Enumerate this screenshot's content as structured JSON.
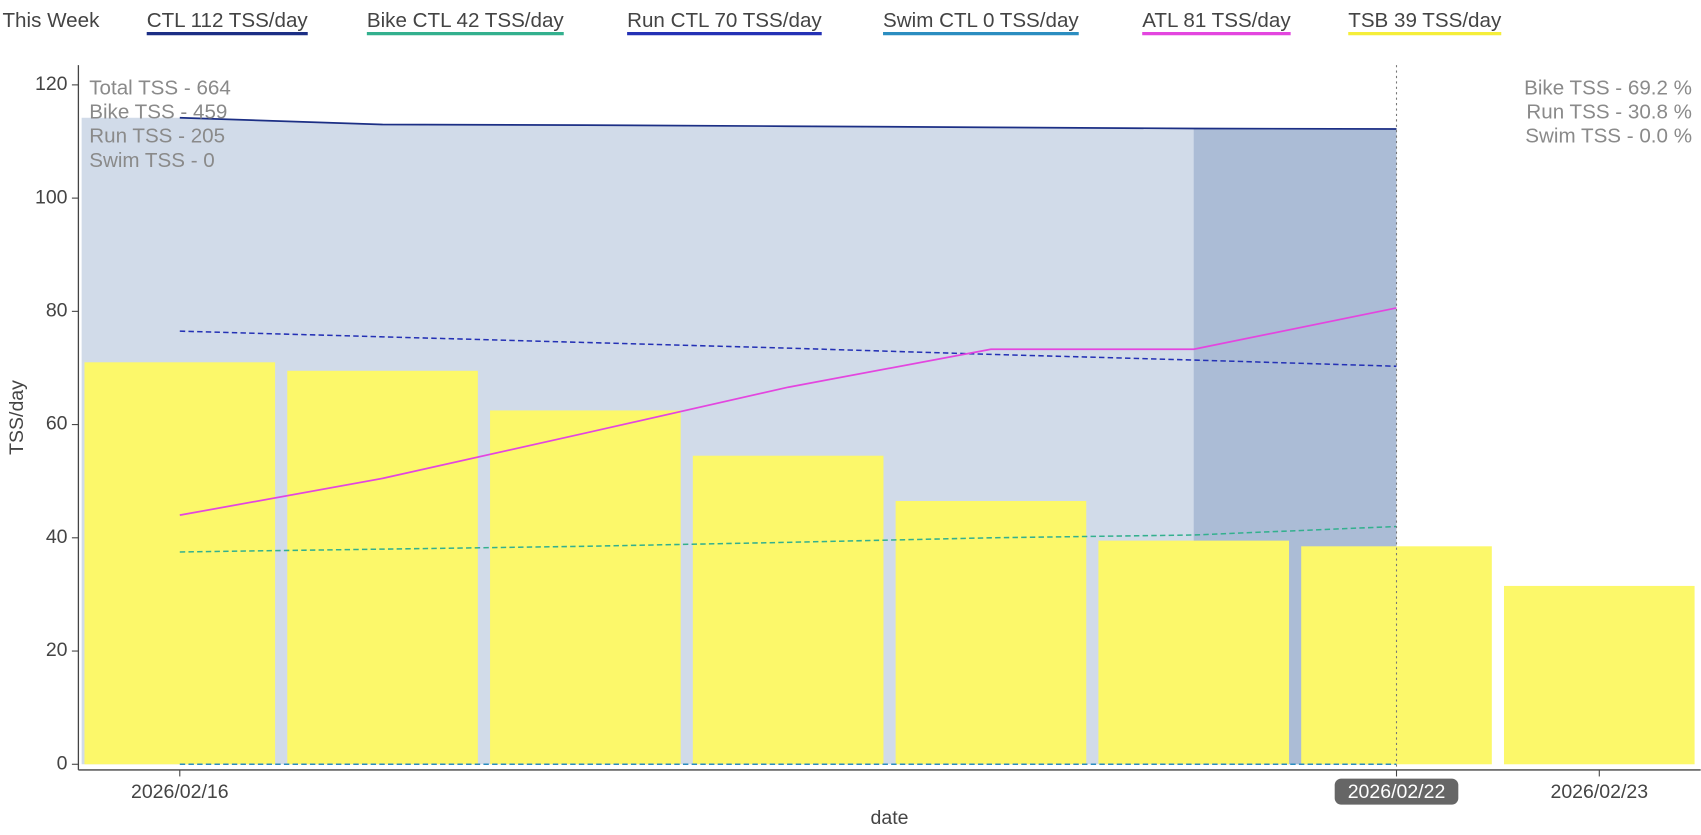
{
  "chart_data": {
    "type": "combo",
    "legend_title": "This Week",
    "x_label": "date",
    "y_label": "TSS/day",
    "categories": [
      "2026/02/16",
      null,
      null,
      null,
      null,
      null,
      "2026/02/22",
      "2026/02/23"
    ],
    "highlight_category": 6,
    "ylim": [
      -1,
      123.5
    ],
    "yticks": [
      0,
      20,
      40,
      60,
      80,
      100,
      120
    ],
    "area_color": "#d1dbe9",
    "highlight_area_color": "#abbcd6",
    "series": [
      {
        "name": "CTL  112 TSS/day",
        "type": "line",
        "color": "#1c2f85",
        "dash": false,
        "area": true,
        "values": [
          114.2,
          113,
          112.9,
          112.7,
          112.5,
          112.3,
          112.2,
          null
        ]
      },
      {
        "name": "Bike CTL  42 TSS/day",
        "type": "line",
        "color": "#33b08e",
        "dash": true,
        "values": [
          37.5,
          38,
          38.5,
          39.2,
          40,
          40.5,
          42,
          null
        ]
      },
      {
        "name": "Run CTL  70 TSS/day",
        "type": "line",
        "color": "#2431b5",
        "dash": true,
        "values": [
          76.5,
          75.5,
          74.5,
          73.5,
          72.4,
          71.4,
          70.3,
          null
        ]
      },
      {
        "name": "Swim CTL  0 TSS/day",
        "type": "line",
        "color": "#2b8dc0",
        "dash": true,
        "values": [
          0,
          0,
          0,
          0,
          0,
          0,
          0,
          null
        ]
      },
      {
        "name": "ATL  81 TSS/day",
        "type": "line",
        "color": "#e346df",
        "dash": false,
        "values": [
          44,
          50.5,
          58.5,
          66.6,
          73.3,
          73.3,
          80.6,
          null
        ]
      },
      {
        "name": "TSB  39 TSS/day",
        "type": "bar",
        "color": "#fcf86a",
        "legend_color": "#f5ee3a",
        "values": [
          71,
          69.5,
          62.5,
          54.5,
          46.5,
          39.5,
          38.5,
          31.5
        ]
      }
    ],
    "left_annotations": [
      "Total TSS - 664",
      "Bike TSS - 459",
      "Run TSS - 205",
      "Swim TSS - 0"
    ],
    "right_annotations": [
      "Bike TSS - 69.2 %",
      "Run TSS - 30.8 %",
      "Swim TSS - 0.0 %"
    ]
  }
}
